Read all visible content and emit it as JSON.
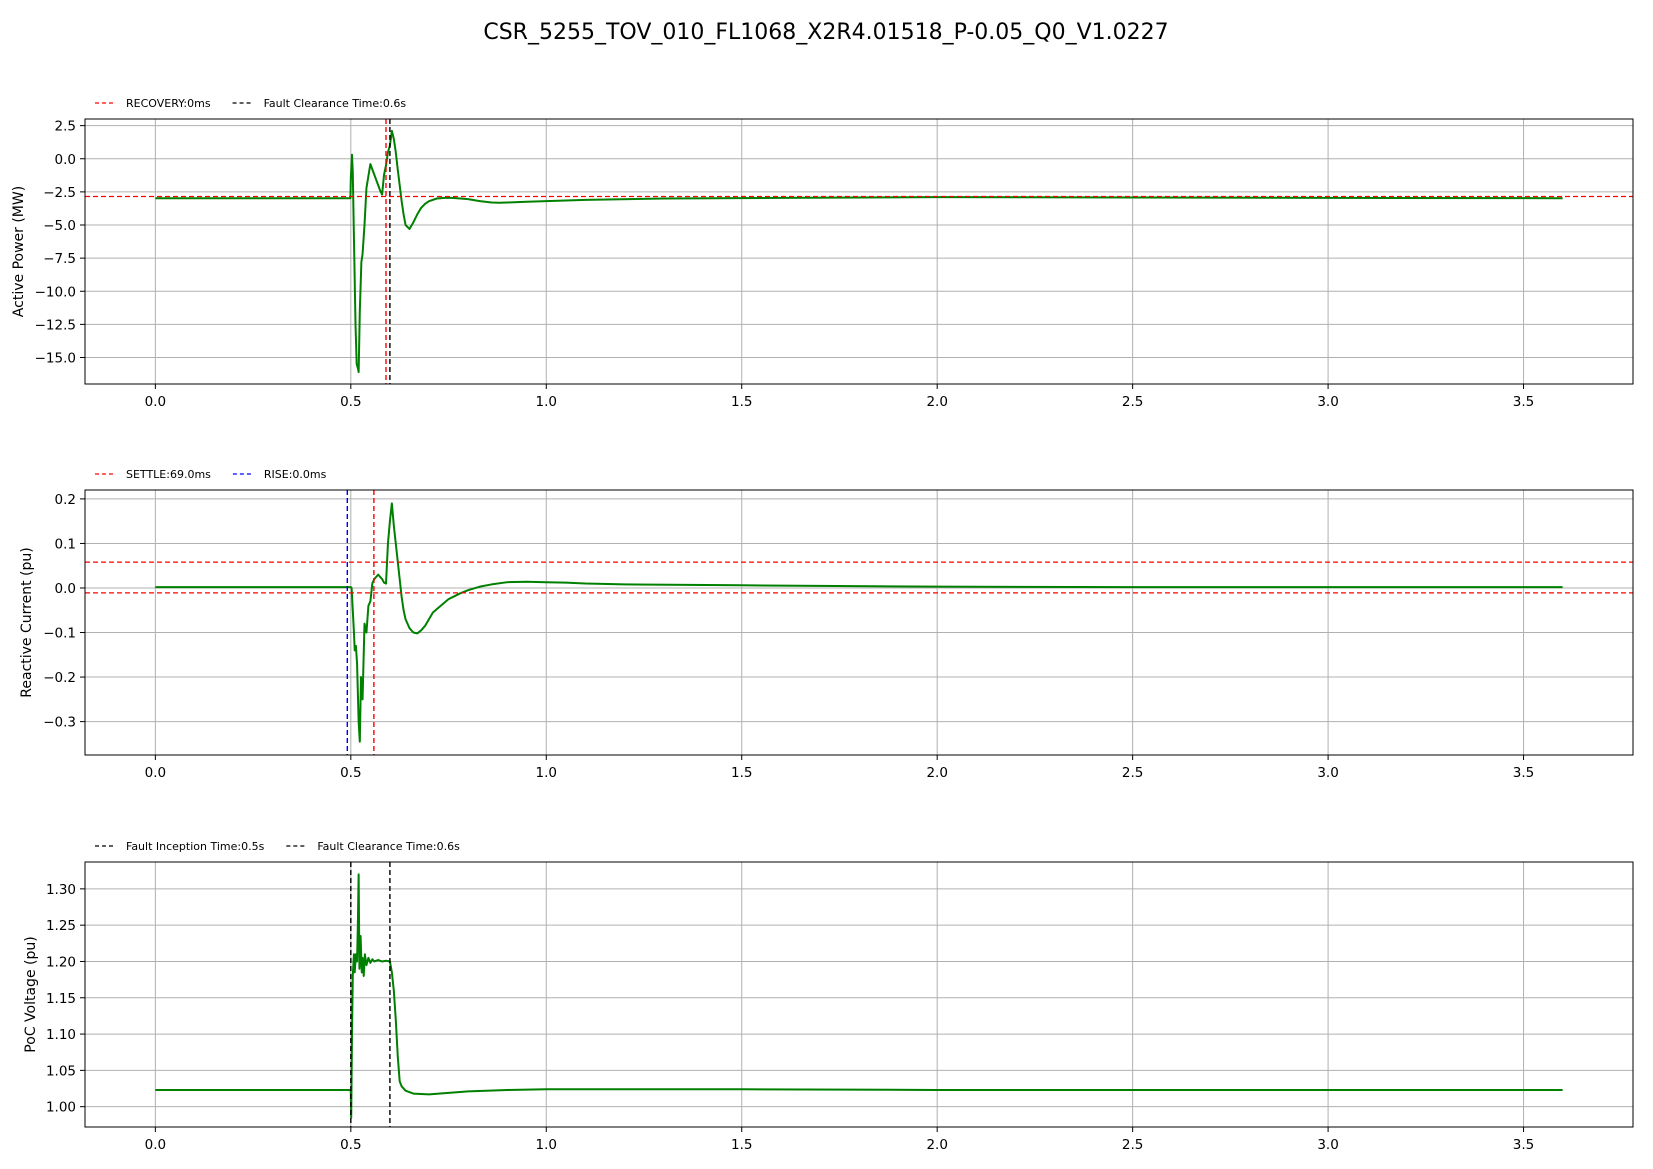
{
  "figure_title": "CSR_5255_TOV_010_FL1068_X2R4.01518_P-0.05_Q0_V1.0227",
  "chart_data": [
    {
      "type": "line",
      "ylabel": "Active Power (MW)",
      "xlim": [
        -0.18,
        3.78
      ],
      "ylim": [
        -17.0,
        3.0
      ],
      "xticks": [
        0.0,
        0.5,
        1.0,
        1.5,
        2.0,
        2.5,
        3.0,
        3.5
      ],
      "yticks": [
        -15.0,
        -12.5,
        -10.0,
        -7.5,
        -5.0,
        -2.5,
        0.0,
        2.5
      ],
      "tick_decimals": 1,
      "grid": true,
      "legend_position": "top-left",
      "legend": [
        {
          "label": "RECOVERY:0ms",
          "color": "#ff0000"
        },
        {
          "label": "Fault Clearance Time:0.6s",
          "color": "#000000"
        }
      ],
      "vlines": [
        {
          "x": 0.59,
          "color": "#ff0000"
        },
        {
          "x": 0.6,
          "color": "#000000"
        }
      ],
      "hlines": [
        {
          "y": -2.85,
          "color": "#ff0000"
        }
      ],
      "series": [
        {
          "color": "#008000",
          "x": [
            0.0,
            0.499,
            0.5,
            0.503,
            0.505,
            0.508,
            0.512,
            0.515,
            0.518,
            0.52,
            0.523,
            0.527,
            0.53,
            0.535,
            0.54,
            0.545,
            0.55,
            0.555,
            0.56,
            0.565,
            0.57,
            0.575,
            0.58,
            0.585,
            0.59,
            0.595,
            0.6,
            0.605,
            0.61,
            0.615,
            0.62,
            0.625,
            0.63,
            0.635,
            0.64,
            0.65,
            0.66,
            0.67,
            0.68,
            0.69,
            0.7,
            0.72,
            0.74,
            0.76,
            0.78,
            0.8,
            0.83,
            0.86,
            0.88,
            0.9,
            0.95,
            1.0,
            1.1,
            1.3,
            1.6,
            2.0,
            2.5,
            3.0,
            3.6
          ],
          "y": [
            -2.98,
            -2.98,
            -1.5,
            0.3,
            -1.0,
            -6.0,
            -12.5,
            -15.5,
            -15.8,
            -16.1,
            -11.5,
            -7.8,
            -7.2,
            -5.0,
            -2.2,
            -1.3,
            -0.4,
            -0.8,
            -1.2,
            -1.6,
            -2.0,
            -2.4,
            -2.7,
            -1.2,
            -0.5,
            0.5,
            1.0,
            2.1,
            1.5,
            0.5,
            -0.8,
            -2.0,
            -3.2,
            -4.2,
            -5.0,
            -5.3,
            -4.8,
            -4.2,
            -3.7,
            -3.4,
            -3.2,
            -3.0,
            -2.95,
            -2.95,
            -3.0,
            -3.05,
            -3.2,
            -3.3,
            -3.32,
            -3.3,
            -3.25,
            -3.2,
            -3.1,
            -3.0,
            -2.95,
            -2.9,
            -2.92,
            -2.95,
            -2.98
          ]
        }
      ]
    },
    {
      "type": "line",
      "ylabel": "Reactive Current (pu)",
      "xlim": [
        -0.18,
        3.78
      ],
      "ylim": [
        -0.375,
        0.22
      ],
      "xticks": [
        0.0,
        0.5,
        1.0,
        1.5,
        2.0,
        2.5,
        3.0,
        3.5
      ],
      "yticks": [
        -0.3,
        -0.2,
        -0.1,
        0.0,
        0.1,
        0.2
      ],
      "tick_decimals": 1,
      "grid": true,
      "legend_position": "top-left",
      "legend": [
        {
          "label": "SETTLE:69.0ms",
          "color": "#ff0000"
        },
        {
          "label": "RISE:0.0ms",
          "color": "#0000ff"
        }
      ],
      "vlines": [
        {
          "x": 0.491,
          "color": "#0000ff"
        },
        {
          "x": 0.559,
          "color": "#ff0000"
        }
      ],
      "hlines": [
        {
          "y": 0.058,
          "color": "#ff0000"
        },
        {
          "y": -0.011,
          "color": "#ff0000"
        }
      ],
      "series": [
        {
          "color": "#008000",
          "x": [
            0.0,
            0.49,
            0.5,
            0.502,
            0.505,
            0.508,
            0.51,
            0.513,
            0.516,
            0.52,
            0.523,
            0.526,
            0.53,
            0.535,
            0.54,
            0.545,
            0.55,
            0.555,
            0.56,
            0.565,
            0.57,
            0.575,
            0.58,
            0.585,
            0.59,
            0.595,
            0.6,
            0.605,
            0.61,
            0.615,
            0.62,
            0.625,
            0.63,
            0.635,
            0.64,
            0.645,
            0.65,
            0.66,
            0.67,
            0.68,
            0.69,
            0.7,
            0.71,
            0.73,
            0.75,
            0.78,
            0.8,
            0.83,
            0.86,
            0.9,
            0.95,
            1.0,
            1.05,
            1.1,
            1.2,
            1.5,
            2.0,
            2.5,
            3.0,
            3.6
          ],
          "y": [
            0.002,
            0.002,
            0.002,
            0.0,
            -0.05,
            -0.1,
            -0.14,
            -0.13,
            -0.17,
            -0.3,
            -0.345,
            -0.2,
            -0.25,
            -0.08,
            -0.1,
            -0.04,
            -0.03,
            0.01,
            0.02,
            0.025,
            0.03,
            0.025,
            0.02,
            0.012,
            0.01,
            0.1,
            0.15,
            0.19,
            0.14,
            0.1,
            0.06,
            0.02,
            -0.02,
            -0.05,
            -0.07,
            -0.08,
            -0.09,
            -0.1,
            -0.102,
            -0.095,
            -0.085,
            -0.07,
            -0.055,
            -0.04,
            -0.025,
            -0.012,
            -0.005,
            0.003,
            0.008,
            0.013,
            0.014,
            0.013,
            0.012,
            0.01,
            0.008,
            0.006,
            0.003,
            0.002,
            0.002,
            0.002
          ]
        }
      ]
    },
    {
      "type": "line",
      "ylabel": "PoC Voltage (pu)",
      "xlim": [
        -0.18,
        3.78
      ],
      "ylim": [
        0.972,
        1.337
      ],
      "xticks": [
        0.0,
        0.5,
        1.0,
        1.5,
        2.0,
        2.5,
        3.0,
        3.5
      ],
      "yticks": [
        1.0,
        1.05,
        1.1,
        1.15,
        1.2,
        1.25,
        1.3
      ],
      "tick_decimals": 2,
      "grid": true,
      "legend_position": "top-left",
      "legend": [
        {
          "label": "Fault Inception Time:0.5s",
          "color": "#000000"
        },
        {
          "label": "Fault Clearance Time:0.6s",
          "color": "#000000"
        }
      ],
      "vlines": [
        {
          "x": 0.5,
          "color": "#000000"
        },
        {
          "x": 0.6,
          "color": "#000000"
        }
      ],
      "hlines": [],
      "series": [
        {
          "color": "#008000",
          "x": [
            0.0,
            0.499,
            0.5,
            0.501,
            0.503,
            0.505,
            0.508,
            0.51,
            0.513,
            0.516,
            0.518,
            0.52,
            0.522,
            0.525,
            0.528,
            0.53,
            0.533,
            0.536,
            0.54,
            0.545,
            0.55,
            0.555,
            0.56,
            0.57,
            0.58,
            0.59,
            0.6,
            0.605,
            0.61,
            0.615,
            0.62,
            0.625,
            0.63,
            0.64,
            0.66,
            0.7,
            0.8,
            0.9,
            1.0,
            1.5,
            2.0,
            3.0,
            3.6
          ],
          "y": [
            1.023,
            1.023,
            1.02,
            0.985,
            1.1,
            1.18,
            1.21,
            1.185,
            1.21,
            1.2,
            1.25,
            1.32,
            1.19,
            1.235,
            1.185,
            1.205,
            1.18,
            1.21,
            1.195,
            1.205,
            1.198,
            1.203,
            1.2,
            1.202,
            1.2,
            1.201,
            1.2,
            1.185,
            1.16,
            1.12,
            1.07,
            1.035,
            1.028,
            1.022,
            1.018,
            1.017,
            1.021,
            1.023,
            1.024,
            1.024,
            1.023,
            1.023,
            1.023
          ]
        }
      ]
    }
  ]
}
